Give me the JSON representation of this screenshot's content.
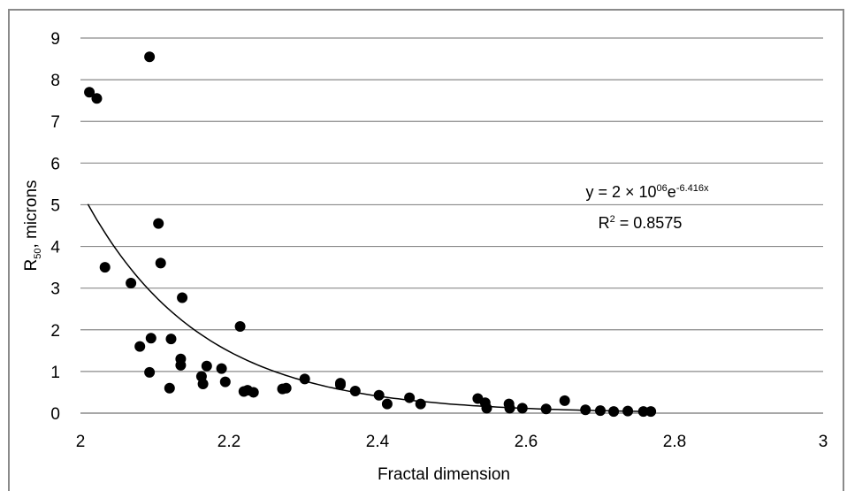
{
  "chart_data": {
    "type": "scatter",
    "xlabel": "Fractal dimension",
    "ylabel_main": "R",
    "ylabel_sub": "50",
    "ylabel_rest": ", microns",
    "xlim": [
      2,
      3
    ],
    "ylim": [
      0,
      9
    ],
    "x_ticks": [
      2,
      2.2,
      2.4,
      2.6,
      2.8,
      3
    ],
    "x_tick_labels": [
      "2",
      "2.2",
      "2.4",
      "2.6",
      "2.8",
      "3"
    ],
    "y_ticks": [
      0,
      1,
      2,
      3,
      4,
      5,
      6,
      7,
      8,
      9
    ],
    "y_tick_labels": [
      "0",
      "1",
      "2",
      "3",
      "4",
      "5",
      "6",
      "7",
      "8",
      "9"
    ],
    "grid": "horizontal",
    "legend": "none",
    "points": {
      "x": [
        2.012,
        2.022,
        2.093,
        2.105,
        2.108,
        2.033,
        2.068,
        2.137,
        2.08,
        2.095,
        2.122,
        2.215,
        2.135,
        2.135,
        2.17,
        2.19,
        2.093,
        2.12,
        2.163,
        2.165,
        2.195,
        2.22,
        2.225,
        2.233,
        2.272,
        2.277,
        2.302,
        2.35,
        2.35,
        2.37,
        2.402,
        2.413,
        2.443,
        2.458,
        2.535,
        2.545,
        2.547,
        2.577,
        2.578,
        2.595,
        2.627,
        2.652,
        2.68,
        2.7,
        2.718,
        2.737,
        2.758,
        2.768
      ],
      "y": [
        7.7,
        7.55,
        8.55,
        4.55,
        3.6,
        3.5,
        3.12,
        2.77,
        1.6,
        1.8,
        1.78,
        2.08,
        1.3,
        1.15,
        1.13,
        1.07,
        0.98,
        0.6,
        0.88,
        0.7,
        0.75,
        0.52,
        0.55,
        0.5,
        0.58,
        0.6,
        0.82,
        0.72,
        0.68,
        0.53,
        0.43,
        0.22,
        0.37,
        0.22,
        0.35,
        0.25,
        0.12,
        0.22,
        0.12,
        0.12,
        0.1,
        0.3,
        0.08,
        0.06,
        0.04,
        0.05,
        0.04,
        0.04
      ]
    },
    "trendline": {
      "type": "exponential",
      "a": 2000000,
      "b": -6.416,
      "x_range": [
        2.01,
        2.77
      ]
    },
    "annotation": {
      "eq_prefix": "y = 2 × 10",
      "eq_exp1": "06",
      "eq_mid": "e",
      "eq_exp2": "-6.416x",
      "r2_prefix": "R",
      "r2_exp": "2",
      "r2_value": " = 0.8575"
    },
    "colors": {
      "points": "#000000",
      "gridline": "#8a8a8a",
      "trendline": "#000000"
    }
  }
}
